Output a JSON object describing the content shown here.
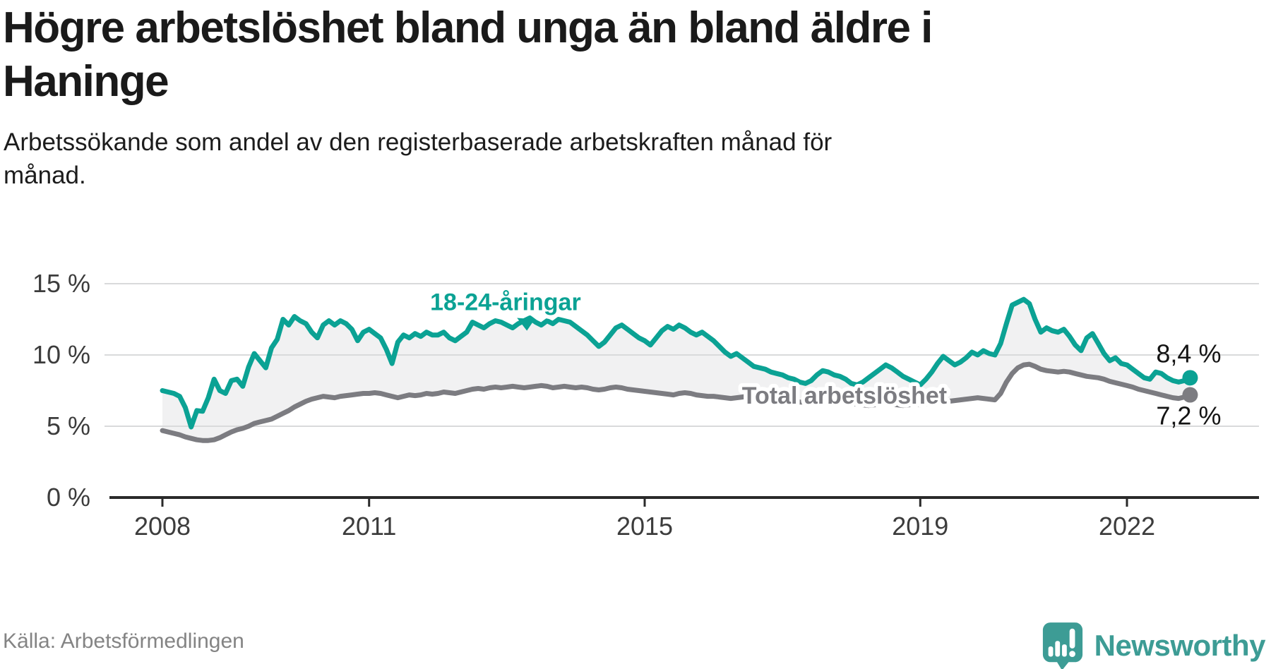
{
  "header": {
    "title_lines": [
      "Högre arbetslöshet bland unga än bland äldre i",
      "Haninge"
    ],
    "subtitle_lines": [
      "Arbetssökande som andel av den registerbaserade arbetskraften månad för",
      "månad."
    ]
  },
  "footer": {
    "source": "Källa: Arbetsförmedlingen",
    "brand": "Newsworthy"
  },
  "colors": {
    "young_line": "#0ba294",
    "total_line": "#7c7c81",
    "area_fill": "#f1f1f2",
    "grid_line": "#d9dadb",
    "axis_line": "#2a2a2a",
    "tick_text": "#3c3c3c",
    "value_text": "#141414",
    "title_text": "#1a1a1a",
    "source_text": "#848484",
    "brand_teal": "#3d9c95"
  },
  "chart_data": {
    "type": "line",
    "title": "Högre arbetslöshet bland unga än bland äldre i Haninge",
    "subtitle": "Arbetssökande som andel av den registerbaserade arbetskraften månad för månad.",
    "x_start": {
      "year": 2008,
      "month": 1
    },
    "x_end": {
      "year": 2022,
      "month": 12
    },
    "x_unit": "month",
    "ylim": [
      0,
      15.5
    ],
    "grid": true,
    "legend_position": "inline-labels",
    "y_ticks": [
      {
        "value": 0,
        "label": "0 %"
      },
      {
        "value": 5,
        "label": "5 %"
      },
      {
        "value": 10,
        "label": "10 %"
      },
      {
        "value": 15,
        "label": "15 %"
      }
    ],
    "x_ticks": [
      {
        "year": 2008,
        "label": "2008"
      },
      {
        "year": 2011,
        "label": "2011"
      },
      {
        "year": 2015,
        "label": "2015"
      },
      {
        "year": 2019,
        "label": "2019"
      },
      {
        "year": 2022,
        "label": "2022"
      }
    ],
    "series": [
      {
        "name": "18-24-åringar",
        "color": "#0ba294",
        "end_label": "8,4 %",
        "end_value": 8.4,
        "values": [
          7.5,
          7.4,
          7.3,
          7.1,
          6.3,
          4.95,
          6.1,
          6.05,
          7.0,
          8.3,
          7.5,
          7.3,
          8.2,
          8.3,
          7.8,
          9.15,
          10.1,
          9.6,
          9.1,
          10.5,
          11.1,
          12.5,
          12.1,
          12.7,
          12.4,
          12.2,
          11.6,
          11.2,
          12.1,
          12.4,
          12.1,
          12.4,
          12.2,
          11.8,
          11.0,
          11.6,
          11.8,
          11.5,
          11.2,
          10.4,
          9.4,
          10.9,
          11.4,
          11.2,
          11.5,
          11.3,
          11.6,
          11.4,
          11.4,
          11.6,
          11.2,
          11.0,
          11.3,
          11.6,
          12.3,
          12.1,
          11.9,
          12.2,
          12.4,
          12.3,
          12.1,
          11.9,
          12.2,
          12.4,
          12.6,
          12.3,
          12.1,
          12.4,
          12.2,
          12.5,
          12.4,
          12.3,
          12.0,
          11.7,
          11.4,
          11.0,
          10.6,
          10.9,
          11.4,
          11.9,
          12.1,
          11.8,
          11.5,
          11.2,
          11.0,
          10.7,
          11.2,
          11.7,
          12.0,
          11.8,
          12.1,
          11.9,
          11.6,
          11.4,
          11.6,
          11.3,
          11.0,
          10.6,
          10.2,
          9.9,
          10.1,
          9.8,
          9.5,
          9.2,
          9.1,
          9.0,
          8.8,
          8.7,
          8.6,
          8.4,
          8.3,
          8.1,
          8.0,
          8.2,
          8.6,
          8.9,
          8.8,
          8.6,
          8.5,
          8.3,
          8.0,
          7.9,
          8.1,
          8.4,
          8.7,
          9.0,
          9.3,
          9.1,
          8.8,
          8.5,
          8.3,
          8.1,
          7.9,
          8.3,
          8.8,
          9.4,
          9.9,
          9.6,
          9.3,
          9.5,
          9.8,
          10.2,
          10.0,
          10.3,
          10.1,
          10.0,
          10.8,
          12.2,
          13.5,
          13.7,
          13.9,
          13.6,
          12.5,
          11.6,
          11.9,
          11.7,
          11.6,
          11.8,
          11.3,
          10.7,
          10.3,
          11.2,
          11.5,
          10.8,
          10.1,
          9.6,
          9.8,
          9.4,
          9.3,
          9.0,
          8.7,
          8.4,
          8.3,
          8.8,
          8.7,
          8.4,
          8.2,
          8.1,
          8.2,
          8.4
        ]
      },
      {
        "name": "Total arbetslöshet",
        "color": "#7c7c81",
        "end_label": "7,2 %",
        "end_value": 7.2,
        "values": [
          4.7,
          4.6,
          4.5,
          4.4,
          4.25,
          4.15,
          4.05,
          4.0,
          4.0,
          4.05,
          4.2,
          4.4,
          4.6,
          4.75,
          4.85,
          5.0,
          5.2,
          5.3,
          5.4,
          5.5,
          5.7,
          5.9,
          6.1,
          6.35,
          6.55,
          6.75,
          6.9,
          7.0,
          7.1,
          7.05,
          7.0,
          7.1,
          7.15,
          7.2,
          7.25,
          7.3,
          7.3,
          7.35,
          7.3,
          7.2,
          7.1,
          7.0,
          7.1,
          7.2,
          7.15,
          7.2,
          7.3,
          7.25,
          7.3,
          7.4,
          7.35,
          7.3,
          7.4,
          7.5,
          7.6,
          7.65,
          7.6,
          7.7,
          7.75,
          7.7,
          7.75,
          7.8,
          7.75,
          7.7,
          7.75,
          7.8,
          7.85,
          7.8,
          7.7,
          7.75,
          7.8,
          7.75,
          7.7,
          7.75,
          7.7,
          7.6,
          7.55,
          7.6,
          7.7,
          7.75,
          7.7,
          7.6,
          7.55,
          7.5,
          7.45,
          7.4,
          7.35,
          7.3,
          7.25,
          7.2,
          7.3,
          7.35,
          7.3,
          7.2,
          7.15,
          7.1,
          7.1,
          7.05,
          7.0,
          6.95,
          7.0,
          7.05,
          7.1,
          7.05,
          7.0,
          6.95,
          6.9,
          6.85,
          6.85,
          6.8,
          6.75,
          6.7,
          6.7,
          6.75,
          6.8,
          6.85,
          6.8,
          6.75,
          6.7,
          6.65,
          6.6,
          6.55,
          6.5,
          6.45,
          6.5,
          6.55,
          6.6,
          6.55,
          6.5,
          6.45,
          6.5,
          6.55,
          6.5,
          6.55,
          6.6,
          6.65,
          6.7,
          6.75,
          6.8,
          6.85,
          6.9,
          6.95,
          7.0,
          6.95,
          6.9,
          6.85,
          7.3,
          8.1,
          8.7,
          9.1,
          9.3,
          9.35,
          9.2,
          9.0,
          8.9,
          8.85,
          8.8,
          8.85,
          8.8,
          8.7,
          8.6,
          8.5,
          8.45,
          8.4,
          8.3,
          8.15,
          8.05,
          7.95,
          7.85,
          7.75,
          7.6,
          7.5,
          7.4,
          7.3,
          7.2,
          7.1,
          7.0,
          6.95,
          7.05,
          7.2
        ]
      }
    ],
    "annotations": {
      "series_label_young": {
        "series_index": 0,
        "year_x": 2012.98,
        "value_y": 13.75
      },
      "series_label_total": {
        "series_index": 1,
        "year_x": 2017.9,
        "value_y": 7.18
      },
      "arrow_to_young_line": {
        "year_x": 2013.28,
        "from_value": 12.6,
        "to_value": 11.7
      }
    }
  }
}
